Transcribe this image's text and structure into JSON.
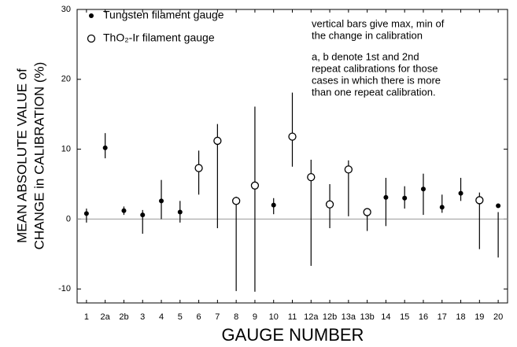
{
  "chart_data": {
    "type": "errorbar",
    "xlabel": "GAUGE NUMBER",
    "ylabel": [
      "MEAN ABSOLUTE VALUE of",
      "CHANGE in CALIBRATION (%)"
    ],
    "categories": [
      "1",
      "2a",
      "2b",
      "3",
      "4",
      "5",
      "6",
      "7",
      "8",
      "9",
      "10",
      "11",
      "12a",
      "12b",
      "13a",
      "13b",
      "14",
      "15",
      "16",
      "17",
      "18",
      "19",
      "20"
    ],
    "series": [
      {
        "name": "Tungsten filament gauge",
        "marker": "filled",
        "color": "#000000",
        "values": [
          0.8,
          10.2,
          1.2,
          0.6,
          2.6,
          1.0,
          null,
          null,
          null,
          null,
          2.0,
          null,
          null,
          null,
          null,
          null,
          3.1,
          3.0,
          4.3,
          1.7,
          3.7,
          null,
          1.9
        ],
        "max": [
          1.5,
          12.3,
          1.8,
          1.3,
          5.6,
          2.6,
          null,
          null,
          null,
          null,
          3.0,
          null,
          null,
          null,
          null,
          null,
          5.9,
          4.7,
          6.5,
          3.5,
          5.9,
          null,
          1.0
        ],
        "min": [
          -0.5,
          8.7,
          0.6,
          -2.1,
          0.0,
          -0.5,
          null,
          null,
          null,
          null,
          0.7,
          null,
          null,
          null,
          null,
          null,
          -1.0,
          1.5,
          0.6,
          0.9,
          2.6,
          null,
          -5.5
        ]
      },
      {
        "name": "ThO₂-Ir filament gauge",
        "marker": "open",
        "color": "#000000",
        "values": [
          null,
          null,
          null,
          null,
          null,
          null,
          7.3,
          11.2,
          2.6,
          4.8,
          null,
          11.8,
          6.0,
          2.1,
          7.1,
          1.0,
          null,
          null,
          null,
          null,
          null,
          2.7,
          null
        ],
        "max": [
          null,
          null,
          null,
          null,
          null,
          null,
          9.8,
          13.6,
          3.2,
          16.1,
          null,
          18.1,
          8.5,
          5.0,
          8.4,
          1.5,
          null,
          null,
          null,
          null,
          null,
          3.8,
          null
        ],
        "min": [
          null,
          null,
          null,
          null,
          null,
          null,
          3.5,
          -1.3,
          -10.3,
          -10.4,
          null,
          7.5,
          -6.7,
          -1.3,
          0.4,
          -1.7,
          null,
          null,
          null,
          null,
          null,
          -4.3,
          null
        ]
      }
    ],
    "ylim": [
      -12,
      30
    ],
    "yticks": [
      -10,
      0,
      10,
      20,
      30
    ],
    "annotations": [
      "vertical bars give max, min of",
      "the change in calibration",
      "a, b denote 1st and 2nd",
      "repeat calibrations for those",
      "cases in which there is more",
      "than one repeat calibration."
    ]
  }
}
